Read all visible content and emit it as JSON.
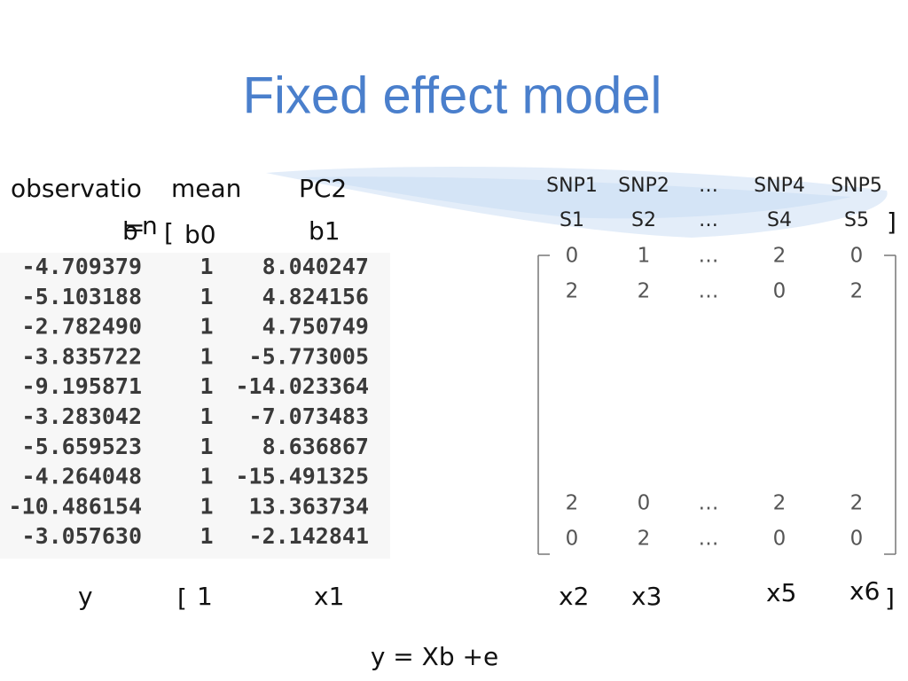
{
  "title": "Fixed effect model",
  "left_table": {
    "headers": [
      "observatio",
      "mean",
      "PC2"
    ],
    "header_wrap": "n",
    "params": [
      "b",
      "=",
      "[",
      "b0",
      "b1"
    ],
    "rows": [
      [
        "-4.709379",
        "1",
        "8.040247"
      ],
      [
        "-5.103188",
        "1",
        "4.824156"
      ],
      [
        "-2.782490",
        "1",
        "4.750749"
      ],
      [
        "-3.835722",
        "1",
        "-5.773005"
      ],
      [
        "-9.195871",
        "1",
        "-14.023364"
      ],
      [
        "-3.283042",
        "1",
        "-7.073483"
      ],
      [
        "-5.659523",
        "1",
        "8.636867"
      ],
      [
        "-4.264048",
        "1",
        "-15.491325"
      ],
      [
        "-10.486154",
        "1",
        "13.363734"
      ],
      [
        "-3.057630",
        "1",
        "-2.142841"
      ]
    ]
  },
  "matrix": {
    "headers": [
      "SNP1",
      "SNP2",
      "…",
      "SNP4",
      "SNP5"
    ],
    "samples": [
      "S1",
      "S2",
      "…",
      "S4",
      "S5"
    ],
    "close_bracket": "]",
    "rows": [
      [
        "0",
        "1",
        "…",
        "2",
        "0"
      ],
      [
        "2",
        "2",
        "…",
        "0",
        "2"
      ],
      [
        "2",
        "0",
        "…",
        "2",
        "2"
      ],
      [
        "0",
        "2",
        "…",
        "0",
        "0"
      ]
    ]
  },
  "labels": [
    "y",
    "[",
    "1",
    "x1",
    "x2",
    "x3",
    "x5",
    "x6",
    "]"
  ],
  "equation": "y = Xb +e"
}
